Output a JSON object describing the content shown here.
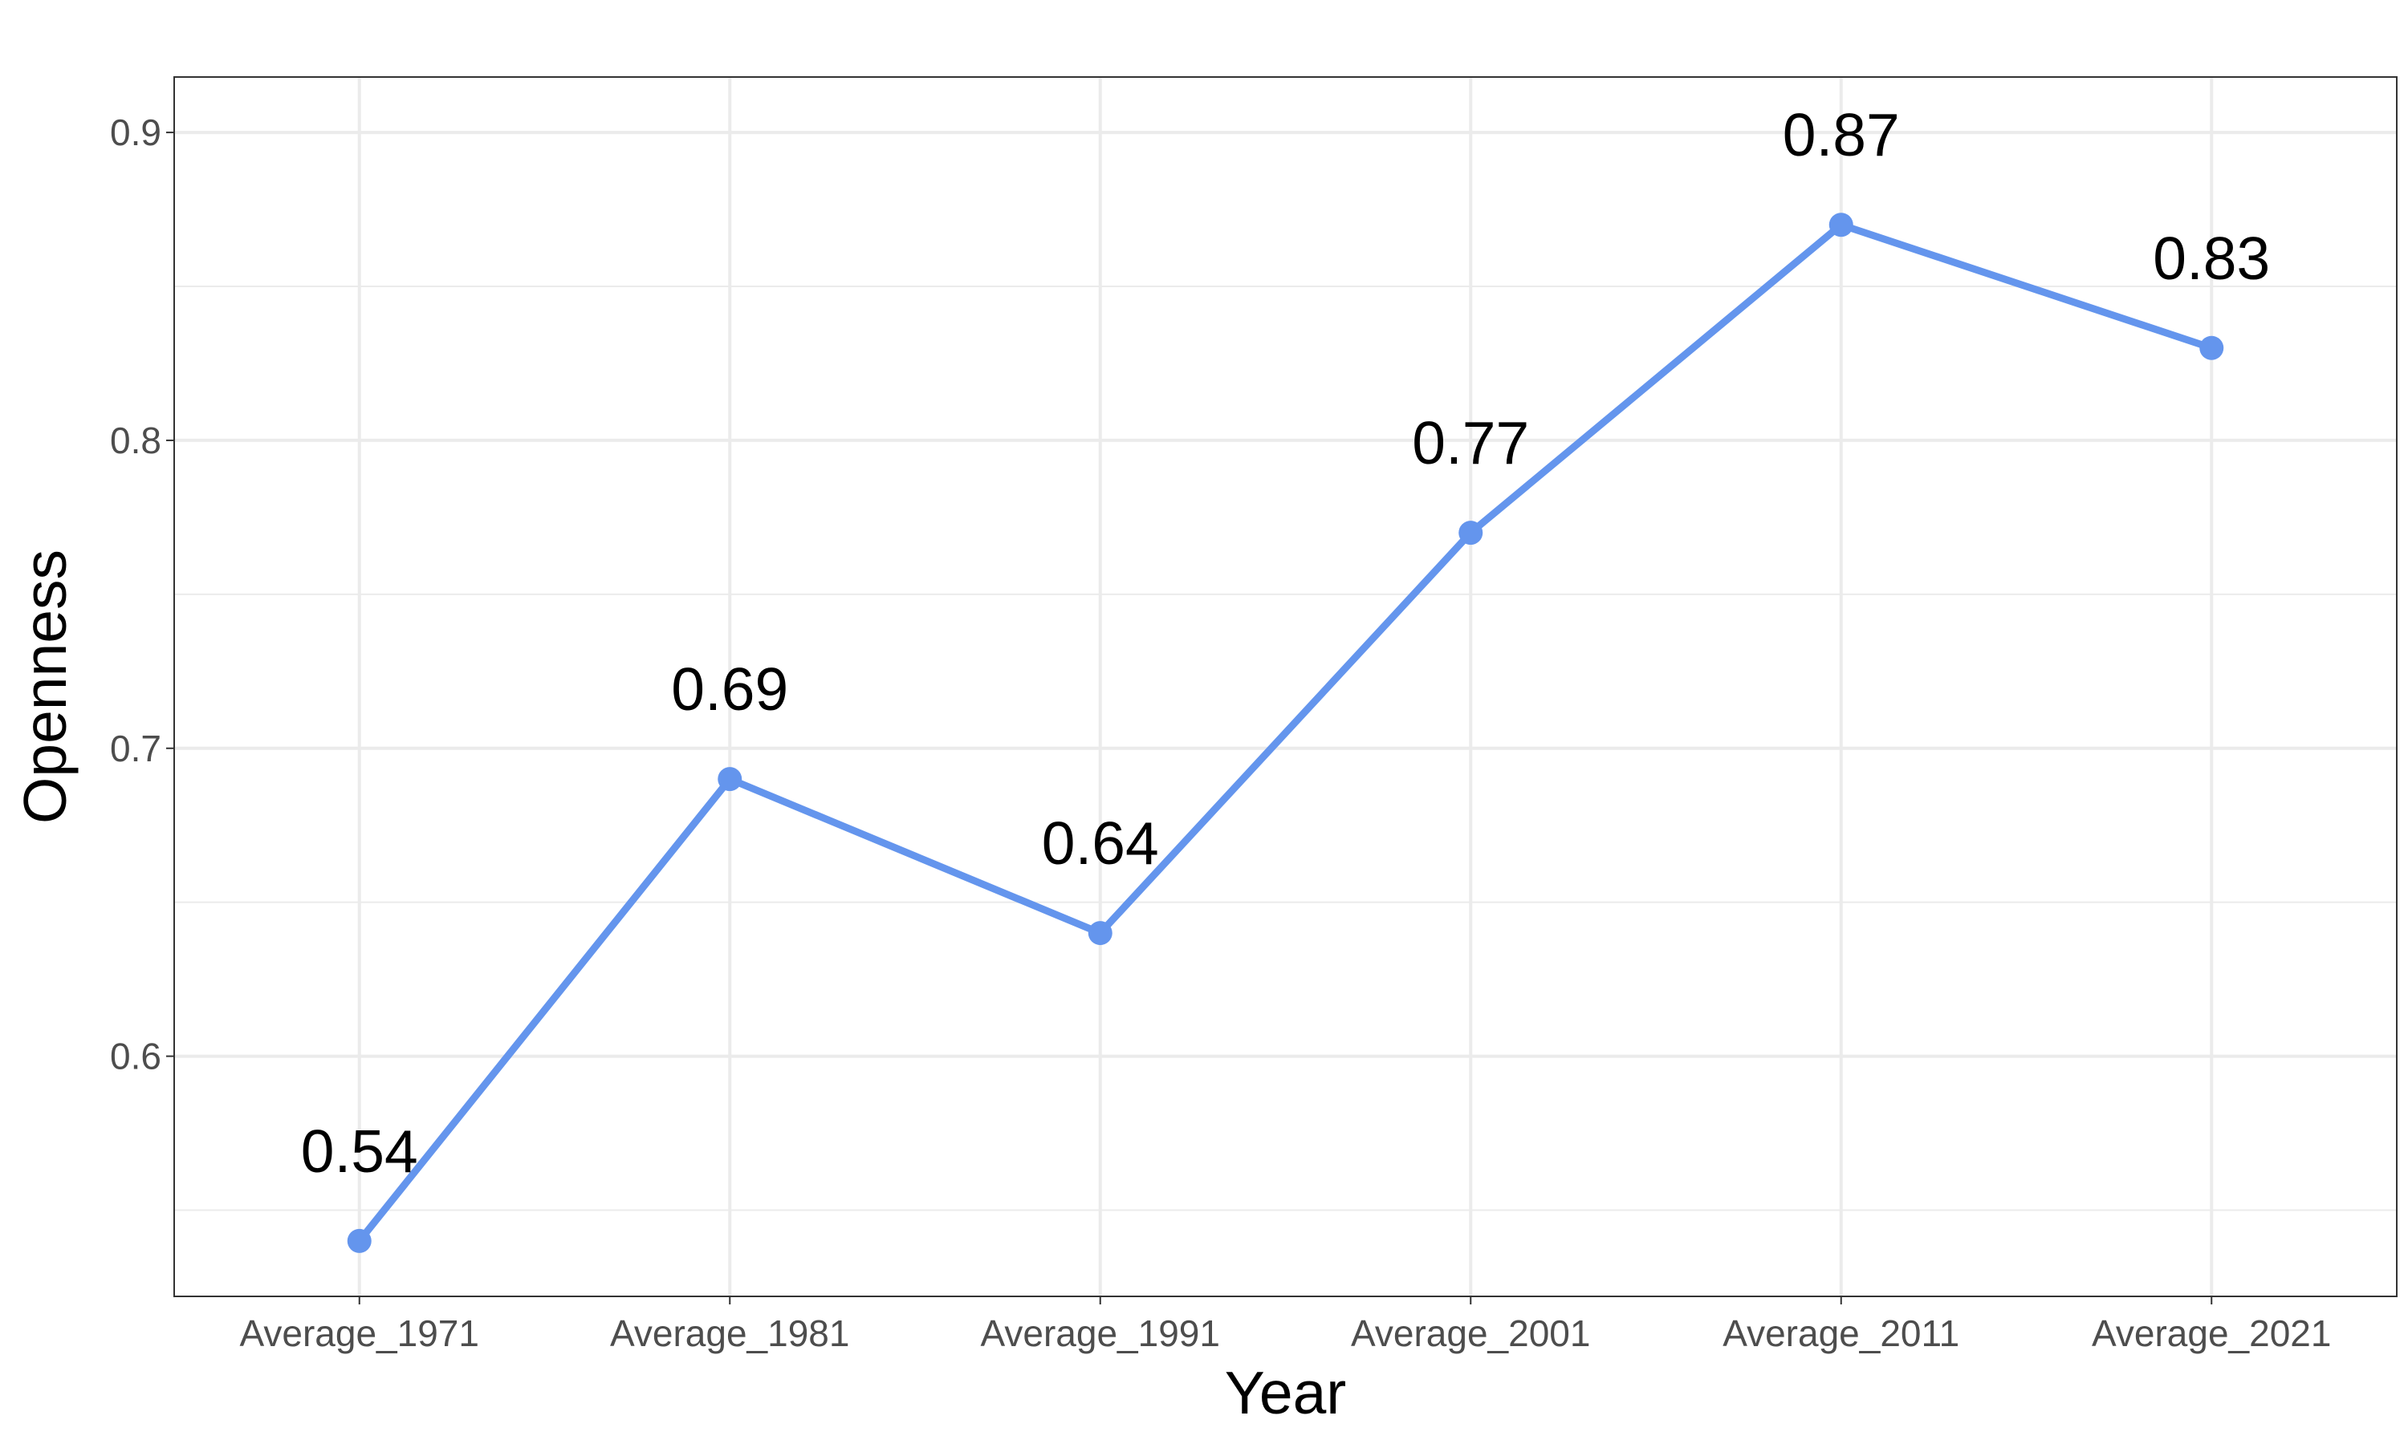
{
  "chart_data": {
    "type": "line",
    "title": "",
    "xlabel": "Year",
    "ylabel": "Openness",
    "categories": [
      "Average_1971",
      "Average_1981",
      "Average_1991",
      "Average_2001",
      "Average_2011",
      "Average_2021"
    ],
    "values": [
      0.54,
      0.69,
      0.64,
      0.77,
      0.87,
      0.83
    ],
    "data_labels": [
      "0.54",
      "0.69",
      "0.64",
      "0.77",
      "0.87",
      "0.83"
    ],
    "ylim": [
      0.522,
      0.918
    ],
    "yticks": [
      0.6,
      0.7,
      0.8,
      0.9
    ],
    "ytick_labels": [
      "0.6",
      "0.7",
      "0.8",
      "0.9"
    ],
    "grid": true,
    "legend": "none",
    "colors": {
      "line": "#6495ED",
      "grid": "#EBEBEB",
      "panel_border": "#333333"
    }
  }
}
